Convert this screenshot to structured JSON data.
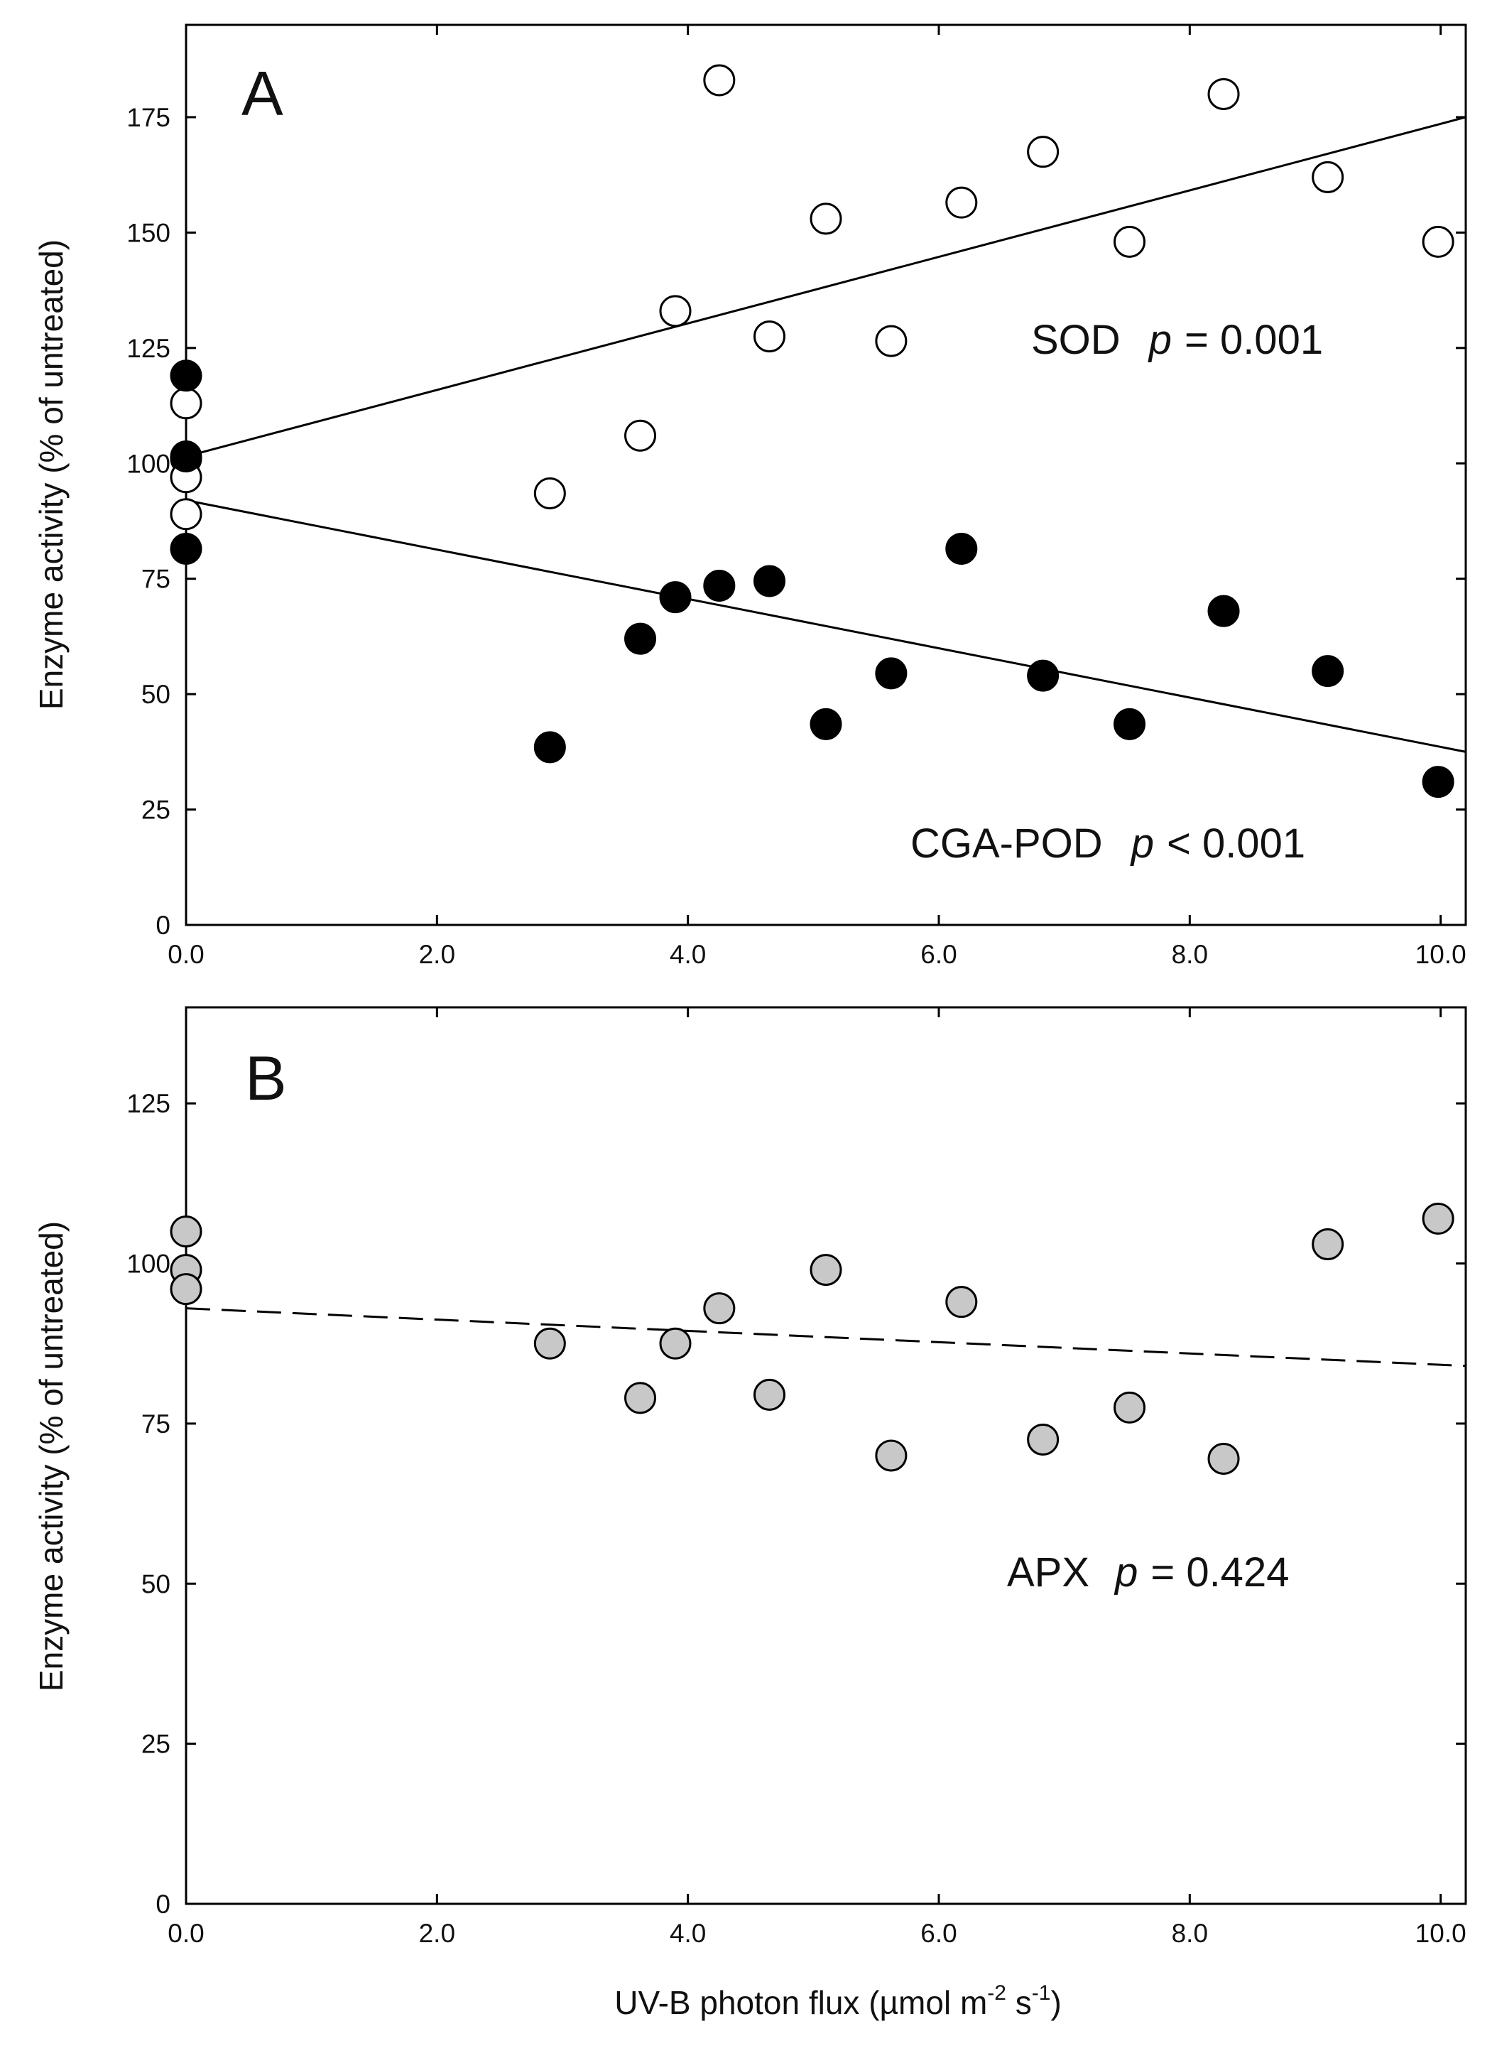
{
  "chart_data": [
    {
      "type": "scatter",
      "panel_label": "A",
      "ylabel": "Enzyme activity (% of untreated)",
      "xlim": [
        0,
        10.2
      ],
      "ylim": [
        0,
        195
      ],
      "xticks": [
        0,
        2,
        4,
        6,
        8,
        10
      ],
      "xtick_labels": [
        "0.0",
        "2.0",
        "4.0",
        "6.0",
        "8.0",
        "10.0"
      ],
      "yticks": [
        0,
        25,
        50,
        75,
        100,
        125,
        150,
        175
      ],
      "ytick_labels": [
        "0",
        "25",
        "50",
        "75",
        "100",
        "125",
        "150",
        "175"
      ],
      "grid": false,
      "series": [
        {
          "name": "SOD",
          "marker": "open-circle",
          "fill": "#ffffff",
          "points": [
            [
              0,
              113
            ],
            [
              0,
              101
            ],
            [
              0,
              97
            ],
            [
              0,
              89
            ],
            [
              2.9,
              93.5
            ],
            [
              3.62,
              106
            ],
            [
              3.9,
              133
            ],
            [
              4.25,
              183
            ],
            [
              4.65,
              127.5
            ],
            [
              5.1,
              153
            ],
            [
              5.62,
              126.5
            ],
            [
              6.18,
              156.5
            ],
            [
              6.83,
              167.5
            ],
            [
              7.52,
              148
            ],
            [
              8.27,
              180
            ],
            [
              9.1,
              162
            ],
            [
              9.98,
              148
            ]
          ],
          "fit": {
            "style": "solid",
            "x": [
              0,
              10.2
            ],
            "y": [
              101.5,
              175
            ]
          },
          "annotation": {
            "label": "SOD",
            "p_symbol": "p",
            "p_text": "= 0.001"
          }
        },
        {
          "name": "CGA-POD",
          "marker": "filled-circle",
          "fill": "#000000",
          "points": [
            [
              0,
              119
            ],
            [
              0,
              101.5
            ],
            [
              0,
              81.5
            ],
            [
              2.9,
              38.5
            ],
            [
              3.62,
              62
            ],
            [
              3.9,
              71
            ],
            [
              4.25,
              73.5
            ],
            [
              4.65,
              74.5
            ],
            [
              5.1,
              43.5
            ],
            [
              5.62,
              54.5
            ],
            [
              6.18,
              81.5
            ],
            [
              6.83,
              54
            ],
            [
              7.52,
              43.5
            ],
            [
              8.27,
              68
            ],
            [
              9.1,
              55
            ],
            [
              9.98,
              31
            ]
          ],
          "fit": {
            "style": "solid",
            "x": [
              0,
              10.2
            ],
            "y": [
              92,
              37.5
            ]
          },
          "annotation": {
            "label": "CGA-POD",
            "p_symbol": "p",
            "p_text": "< 0.001"
          }
        }
      ]
    },
    {
      "type": "scatter",
      "panel_label": "B",
      "ylabel": "Enzyme activity (% of untreated)",
      "xlabel": {
        "prefix": "UV-B photon flux (",
        "mu": "µ",
        "unit": "mol m",
        "sup1": "-2",
        "mid": " s",
        "sup2": "-1",
        "suffix": ")"
      },
      "xlim": [
        0,
        10.2
      ],
      "ylim": [
        0,
        140
      ],
      "xticks": [
        0,
        2,
        4,
        6,
        8,
        10
      ],
      "xtick_labels": [
        "0.0",
        "2.0",
        "4.0",
        "6.0",
        "8.0",
        "10.0"
      ],
      "yticks": [
        0,
        25,
        50,
        75,
        100,
        125
      ],
      "ytick_labels": [
        "0",
        "25",
        "50",
        "75",
        "100",
        "125"
      ],
      "grid": false,
      "series": [
        {
          "name": "APX",
          "marker": "grey-circle",
          "fill": "#c8c8c8",
          "points": [
            [
              0,
              105
            ],
            [
              0,
              99
            ],
            [
              0,
              96
            ],
            [
              2.9,
              87.5
            ],
            [
              3.62,
              79
            ],
            [
              3.9,
              87.5
            ],
            [
              4.25,
              93
            ],
            [
              4.65,
              79.5
            ],
            [
              5.1,
              99
            ],
            [
              5.62,
              70
            ],
            [
              6.18,
              94
            ],
            [
              6.83,
              72.5
            ],
            [
              7.52,
              77.5
            ],
            [
              8.27,
              69.5
            ],
            [
              9.1,
              103
            ],
            [
              9.98,
              107
            ]
          ],
          "fit": {
            "style": "dashed",
            "x": [
              0,
              10.2
            ],
            "y": [
              93,
              84
            ]
          },
          "annotation": {
            "label": "APX",
            "p_symbol": "p",
            "p_text": "= 0.424"
          }
        }
      ]
    }
  ]
}
